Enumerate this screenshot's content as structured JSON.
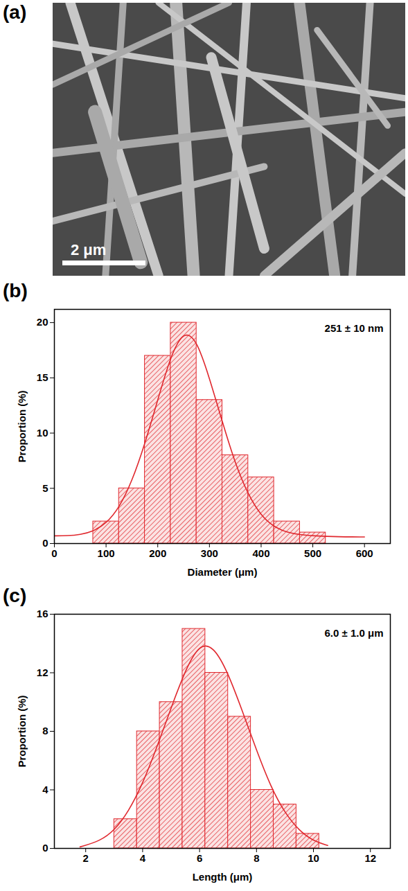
{
  "chart_data": [
    {
      "type": "image",
      "panel": "(a)",
      "scale_bar": "2 μm"
    },
    {
      "type": "histogram",
      "panel": "(b)",
      "color": "#e0282e",
      "xlabel": "Diameter (μm)",
      "ylabel": "Proportion (%)",
      "annotations": [
        "251 ± 10 nm"
      ],
      "bins": [
        75,
        125,
        175,
        225,
        275,
        325,
        375,
        425,
        475,
        525
      ],
      "values": [
        2,
        5,
        17,
        20,
        13,
        8,
        6,
        2,
        1
      ],
      "fit": {
        "x": [
          0,
          25,
          50,
          75,
          100,
          125,
          150,
          175,
          200,
          225,
          250,
          275,
          300,
          325,
          350,
          375,
          400,
          425,
          450,
          475,
          500,
          550,
          600
        ],
        "y": [
          0.7,
          0.7,
          0.8,
          1.1,
          1.8,
          3.2,
          5.6,
          9,
          13,
          17,
          19.3,
          18.5,
          15,
          11,
          7.2,
          4.4,
          2.5,
          1.5,
          1,
          0.8,
          0.7,
          0.6,
          0.6
        ]
      },
      "xlim": [
        0,
        650
      ],
      "xticks": [
        0,
        100,
        200,
        300,
        400,
        500,
        600
      ],
      "ylim": [
        0,
        21.2
      ],
      "yticks": [
        0,
        5,
        10,
        15,
        20
      ]
    },
    {
      "type": "histogram",
      "panel": "(c)",
      "color": "#e0282e",
      "xlabel": "Length (μm)",
      "ylabel": "Proportion (%)",
      "annotations": [
        "6.0 ± 1.0 μm"
      ],
      "bins": [
        3.0,
        3.8,
        4.6,
        5.4,
        6.2,
        7.0,
        7.8,
        8.6,
        9.4,
        10.2
      ],
      "values": [
        2,
        8,
        10,
        15,
        12,
        9,
        4,
        3,
        1
      ],
      "fit": {
        "x": [
          1.8,
          2.5,
          3,
          3.5,
          4,
          4.5,
          5,
          5.5,
          6,
          6.5,
          7,
          7.5,
          8,
          8.5,
          9,
          9.5,
          10,
          10.5
        ],
        "y": [
          0.1,
          0.5,
          1.2,
          2.5,
          4.4,
          6.9,
          9.6,
          12.2,
          14,
          13.8,
          12,
          9.4,
          6.7,
          4.2,
          2.4,
          1.2,
          0.5,
          0.2
        ]
      },
      "xlim": [
        0.9,
        12.7
      ],
      "xticks": [
        2,
        4,
        6,
        8,
        10,
        12
      ],
      "ylim": [
        0,
        16
      ],
      "yticks": [
        0,
        4,
        8,
        12,
        16
      ]
    }
  ]
}
